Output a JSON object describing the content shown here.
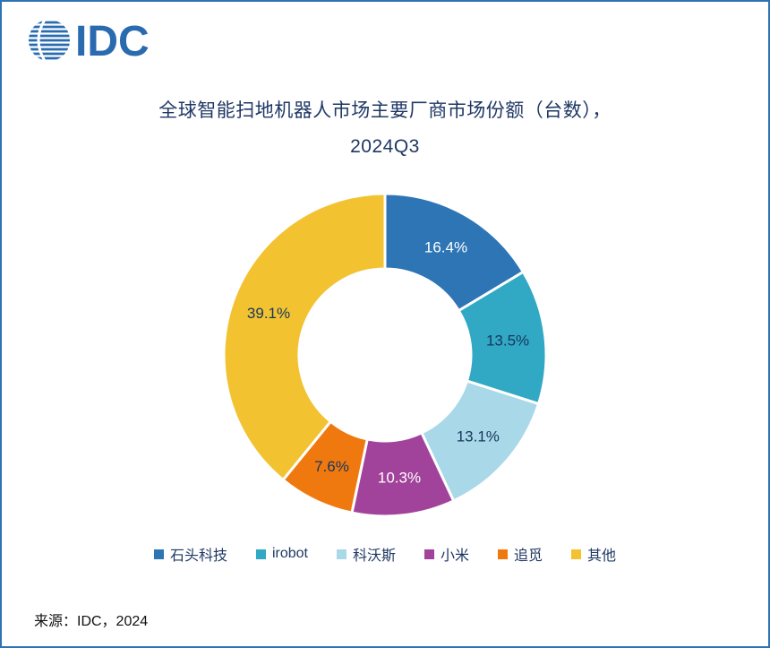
{
  "logo": {
    "text": "IDC"
  },
  "title": {
    "line1": "全球智能扫地机器人市场主要厂商市场份额（台数），",
    "line2": "2024Q3"
  },
  "source": "来源：IDC，2024",
  "colors": {
    "border": "#2E74B5",
    "title_text": "#1F3864",
    "legend_text": "#1F3864",
    "logo_blue": "#2A6BB0"
  },
  "chart_data": {
    "type": "pie",
    "donut": true,
    "title": "全球智能扫地机器人市场主要厂商市场份额（台数），2024Q3",
    "start_angle_deg": -90,
    "direction": "clockwise",
    "legend_position": "bottom",
    "total": 100,
    "slices": [
      {
        "label": "石头科技",
        "value": 16.4,
        "display": "16.4%",
        "color": "#2E75B6",
        "label_color": "#FFFFFF"
      },
      {
        "label": "irobot",
        "value": 13.5,
        "display": "13.5%",
        "color": "#31A8C4",
        "label_color": "#17375D"
      },
      {
        "label": "科沃斯",
        "value": 13.1,
        "display": "13.1%",
        "color": "#A9D8E8",
        "label_color": "#17375D"
      },
      {
        "label": "小米",
        "value": 10.3,
        "display": "10.3%",
        "color": "#A2439B",
        "label_color": "#FFFFFF"
      },
      {
        "label": "追觅",
        "value": 7.6,
        "display": "7.6%",
        "color": "#F0790F",
        "label_color": "#17375D"
      },
      {
        "label": "其他",
        "value": 39.1,
        "display": "39.1%",
        "color": "#F2C231",
        "label_color": "#17375D"
      }
    ]
  }
}
